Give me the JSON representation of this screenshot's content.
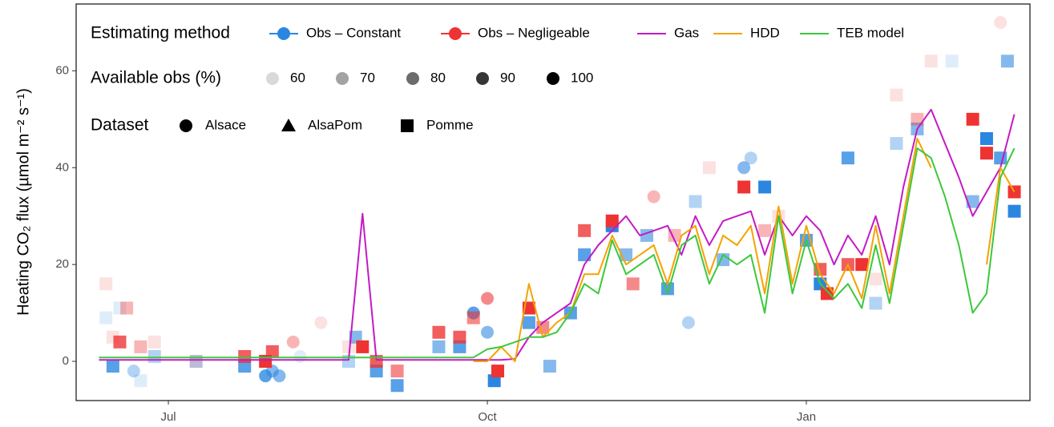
{
  "chart_data": {
    "type": "line",
    "y_label": "Heating  CO₂  flux (µmol m⁻² s⁻¹)",
    "legend_titles": [
      "Estimating method",
      "Available obs (%)",
      "Dataset"
    ],
    "available_obs_levels": [
      60,
      70,
      80,
      90,
      100
    ],
    "datasets": [
      "Alsace",
      "AlsaPom",
      "Pomme"
    ],
    "xlim": [
      -26.6,
      248.5
    ],
    "xticks": [
      {
        "value": 0,
        "label": "Jul"
      },
      {
        "value": 92,
        "label": "Oct"
      },
      {
        "value": 184,
        "label": "Jan"
      }
    ],
    "ylim": [
      -8.1,
      73.8
    ],
    "yticks": [
      0,
      20,
      40,
      60
    ],
    "x": [
      -20,
      -16,
      -12,
      -8,
      -4,
      0,
      4,
      8,
      12,
      16,
      20,
      24,
      28,
      32,
      36,
      40,
      44,
      48,
      52,
      56,
      60,
      64,
      68,
      72,
      76,
      80,
      84,
      88,
      92,
      96,
      100,
      104,
      108,
      112,
      116,
      120,
      124,
      128,
      132,
      136,
      140,
      144,
      148,
      152,
      156,
      160,
      164,
      168,
      172,
      176,
      180,
      184,
      188,
      192,
      196,
      200,
      204,
      208,
      212,
      216,
      220,
      224,
      228,
      232,
      236,
      240,
      244
    ],
    "series": [
      {
        "name": "Obs – Constant",
        "type": "scatter",
        "color": "#2b86e0",
        "x": [
          -18,
          -16,
          -14,
          -10,
          -8,
          -4,
          8,
          22,
          28,
          30,
          32,
          38,
          52,
          54,
          60,
          66,
          78,
          84,
          88,
          92,
          94,
          104,
          110,
          116,
          120,
          128,
          132,
          138,
          144,
          150,
          152,
          160,
          166,
          168,
          172,
          184,
          188,
          196,
          204,
          210,
          216,
          226,
          232,
          236,
          240,
          244,
          242
        ],
        "values": [
          9,
          -1,
          11,
          -2,
          -4,
          1,
          0,
          -1,
          -3,
          -2,
          -3,
          1,
          0,
          5,
          -2,
          -5,
          3,
          3,
          10,
          6,
          -4,
          8,
          -1,
          10,
          22,
          28,
          22,
          26,
          15,
          8,
          33,
          21,
          40,
          42,
          36,
          25,
          16,
          42,
          12,
          45,
          48,
          62,
          33,
          46,
          42,
          31,
          62
        ],
        "dataset": [
          "Pomme",
          "Pomme",
          "Pomme",
          "Alsace",
          "Pomme",
          "Pomme",
          "Pomme",
          "Pomme",
          "Alsace",
          "Alsace",
          "Alsace",
          "Alsace",
          "Pomme",
          "Pomme",
          "Pomme",
          "Pomme",
          "Pomme",
          "Pomme",
          "Alsace",
          "Alsace",
          "Pomme",
          "Pomme",
          "Pomme",
          "Pomme",
          "Pomme",
          "Pomme",
          "Pomme",
          "Pomme",
          "Pomme",
          "Alsace",
          "Pomme",
          "Pomme",
          "Alsace",
          "Alsace",
          "Pomme",
          "Pomme",
          "Pomme",
          "Pomme",
          "Pomme",
          "Pomme",
          "Pomme",
          "Pomme",
          "Pomme",
          "Pomme",
          "Pomme",
          "Pomme",
          "Pomme"
        ],
        "available_obs": [
          60,
          90,
          60,
          70,
          60,
          70,
          70,
          90,
          90,
          80,
          80,
          60,
          70,
          80,
          90,
          90,
          80,
          90,
          90,
          80,
          100,
          90,
          80,
          90,
          90,
          100,
          80,
          80,
          90,
          70,
          70,
          80,
          80,
          70,
          100,
          90,
          100,
          90,
          70,
          70,
          80,
          60,
          80,
          100,
          90,
          100,
          80
        ]
      },
      {
        "name": "Obs – Negligeable",
        "type": "scatter",
        "color": "#ee3333",
        "x": [
          -18,
          -16,
          -14,
          -12,
          -8,
          -4,
          8,
          22,
          28,
          30,
          36,
          44,
          52,
          56,
          60,
          66,
          78,
          84,
          88,
          92,
          95,
          104,
          108,
          120,
          128,
          134,
          140,
          146,
          156,
          166,
          172,
          176,
          188,
          190,
          196,
          200,
          204,
          210,
          216,
          220,
          232,
          236,
          240,
          244
        ],
        "values": [
          16,
          5,
          4,
          11,
          3,
          4,
          0,
          1,
          0,
          2,
          4,
          8,
          3,
          3,
          0,
          -2,
          6,
          5,
          9,
          13,
          -2,
          11,
          7,
          27,
          29,
          16,
          34,
          26,
          40,
          36,
          27,
          30,
          19,
          14,
          20,
          20,
          17,
          55,
          50,
          62,
          50,
          43,
          70,
          35
        ],
        "dataset": [
          "Pomme",
          "Pomme",
          "Pomme",
          "Pomme",
          "Pomme",
          "Pomme",
          "Pomme",
          "Pomme",
          "Pomme",
          "Pomme",
          "Alsace",
          "Alsace",
          "Pomme",
          "Pomme",
          "Pomme",
          "Pomme",
          "Pomme",
          "Pomme",
          "Pomme",
          "Alsace",
          "Pomme",
          "Pomme",
          "Pomme",
          "Pomme",
          "Pomme",
          "Pomme",
          "Alsace",
          "Pomme",
          "Pomme",
          "Pomme",
          "Pomme",
          "Pomme",
          "Pomme",
          "Pomme",
          "Pomme",
          "Pomme",
          "Pomme",
          "Pomme",
          "Pomme",
          "Pomme",
          "Pomme",
          "Pomme",
          "Alsace",
          "Pomme"
        ],
        "available_obs": [
          60,
          60,
          90,
          70,
          70,
          60,
          60,
          90,
          100,
          90,
          70,
          60,
          60,
          100,
          90,
          80,
          90,
          90,
          80,
          80,
          100,
          100,
          80,
          90,
          100,
          80,
          70,
          70,
          60,
          100,
          70,
          60,
          90,
          100,
          90,
          100,
          60,
          60,
          70,
          60,
          100,
          100,
          60,
          100
        ]
      },
      {
        "name": "Gas",
        "type": "line",
        "color": "#c41ac4",
        "values": [
          0.3,
          0.3,
          0.3,
          0.3,
          0.3,
          0.3,
          0.3,
          0.3,
          0.3,
          0.3,
          0.3,
          0.3,
          0.3,
          0.3,
          0.3,
          0.3,
          0.3,
          0.3,
          0.3,
          30.5,
          0.3,
          0.3,
          0.3,
          0.3,
          0.3,
          0.3,
          0.3,
          0.3,
          0.3,
          0.3,
          0.5,
          5,
          8,
          10,
          12,
          20,
          24,
          27,
          30,
          26,
          27,
          28,
          22,
          30,
          24,
          29,
          30,
          31,
          22,
          30,
          26,
          30,
          27,
          20,
          26,
          22,
          30,
          20,
          36,
          48,
          52,
          45,
          38,
          30,
          35,
          40,
          51
        ]
      },
      {
        "name": "HDD",
        "type": "line",
        "color": "#f4a300",
        "values": [
          null,
          null,
          null,
          null,
          null,
          null,
          null,
          null,
          null,
          null,
          null,
          null,
          null,
          null,
          null,
          null,
          null,
          null,
          null,
          null,
          null,
          null,
          null,
          null,
          null,
          null,
          null,
          0,
          0,
          3,
          0,
          16,
          5,
          8,
          10,
          18,
          18,
          26,
          20,
          22,
          24,
          16,
          26,
          28,
          18,
          26,
          24,
          28,
          14,
          32,
          16,
          28,
          18,
          14,
          20,
          13,
          28,
          14,
          30,
          46,
          40,
          null,
          30,
          null,
          20,
          40,
          35
        ]
      },
      {
        "name": "TEB model",
        "type": "line",
        "color": "#3cc83c",
        "values": [
          0.8,
          0.8,
          0.8,
          0.8,
          0.8,
          0.8,
          0.8,
          0.8,
          0.8,
          0.8,
          0.8,
          0.8,
          0.8,
          0.8,
          0.8,
          0.8,
          0.8,
          0.8,
          0.8,
          0.8,
          0.8,
          0.8,
          0.8,
          0.8,
          0.8,
          0.8,
          0.8,
          0.8,
          2.5,
          3,
          4,
          5,
          5,
          6,
          10,
          16,
          14,
          25,
          18,
          20,
          22,
          14,
          24,
          26,
          16,
          22,
          20,
          22,
          10,
          30,
          14,
          25,
          16,
          13,
          16,
          11,
          24,
          12,
          28,
          44,
          42,
          34,
          24,
          10,
          14,
          38,
          44
        ]
      }
    ]
  }
}
